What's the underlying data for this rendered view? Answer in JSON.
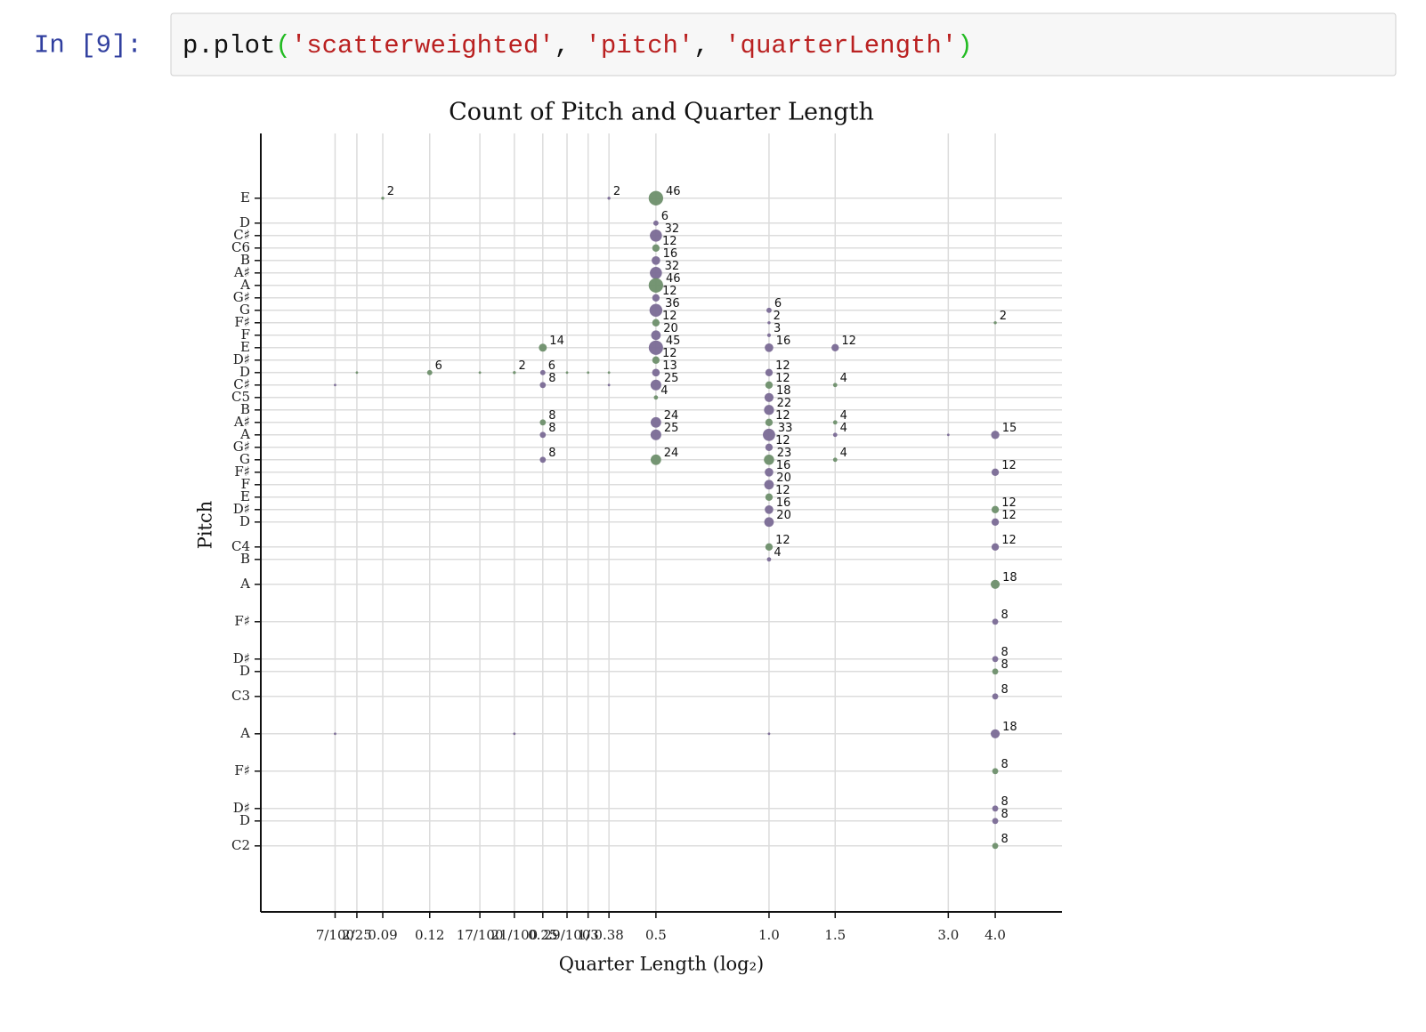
{
  "cell": {
    "prompt": "In [9]:",
    "code": [
      "p.plot",
      "(",
      "'scatterweighted'",
      ", ",
      "'pitch'",
      ", ",
      "'quarterLength'",
      ")"
    ]
  },
  "chart_data": {
    "type": "scatter",
    "title": "Count of Pitch and Quarter Length",
    "x_label": "Quarter Length (log₂)",
    "y_label": "Pitch",
    "xscale": "log2",
    "grid": true,
    "xlim": [
      0.0444,
      6.02
    ],
    "ylim": [
      30.7,
      93.2
    ],
    "xticks": [
      {
        "value": 0.07,
        "label": "7/100"
      },
      {
        "value": 0.08,
        "label": "2/25"
      },
      {
        "value": 0.09375,
        "label": "0.09"
      },
      {
        "value": 0.125,
        "label": "0.12"
      },
      {
        "value": 0.17,
        "label": "17/100"
      },
      {
        "value": 0.21,
        "label": "21/100"
      },
      0.25,
      {
        "value": 0.29,
        "label": "29/100"
      },
      {
        "value": 0.33,
        "label": "1/3"
      },
      {
        "value": 0.375,
        "label": "0.38"
      },
      0.5,
      {
        "value": 1,
        "label": "1.0"
      },
      1.5,
      {
        "value": 3,
        "label": "3.0"
      },
      {
        "value": 4,
        "label": "4.0"
      }
    ],
    "yticks": [
      {
        "value": 88,
        "label": "E"
      },
      {
        "value": 86,
        "label": "D"
      },
      {
        "value": 85,
        "label": "C♯"
      },
      {
        "value": 84,
        "label": "C6"
      },
      {
        "value": 83,
        "label": "B"
      },
      {
        "value": 82,
        "label": "A♯"
      },
      {
        "value": 81,
        "label": "A"
      },
      {
        "value": 80,
        "label": "G♯"
      },
      {
        "value": 79,
        "label": "G"
      },
      {
        "value": 78,
        "label": "F♯"
      },
      {
        "value": 77,
        "label": "F"
      },
      {
        "value": 76,
        "label": "E"
      },
      {
        "value": 75,
        "label": "D♯"
      },
      {
        "value": 74,
        "label": "D"
      },
      {
        "value": 73,
        "label": "C♯"
      },
      {
        "value": 72,
        "label": "C5"
      },
      {
        "value": 71,
        "label": "B"
      },
      {
        "value": 70,
        "label": "A♯"
      },
      {
        "value": 69,
        "label": "A"
      },
      {
        "value": 68,
        "label": "G♯"
      },
      {
        "value": 67,
        "label": "G"
      },
      {
        "value": 66,
        "label": "F♯"
      },
      {
        "value": 65,
        "label": "F"
      },
      {
        "value": 64,
        "label": "E"
      },
      {
        "value": 63,
        "label": "D♯"
      },
      {
        "value": 62,
        "label": "D"
      },
      {
        "value": 60,
        "label": "C4"
      },
      {
        "value": 59,
        "label": "B"
      },
      {
        "value": 57,
        "label": "A"
      },
      {
        "value": 54,
        "label": "F♯"
      },
      {
        "value": 51,
        "label": "D♯"
      },
      {
        "value": 50,
        "label": "D"
      },
      {
        "value": 48,
        "label": "C3"
      },
      {
        "value": 45,
        "label": "A"
      },
      {
        "value": 42,
        "label": "F♯"
      },
      {
        "value": 39,
        "label": "D♯"
      },
      {
        "value": 38,
        "label": "D"
      },
      {
        "value": 36,
        "label": "C2"
      }
    ],
    "x": [
      0.09375,
      0.375,
      0.5,
      0.5,
      0.5,
      0.5,
      0.5,
      0.5,
      0.5,
      0.5,
      0.5,
      0.5,
      0.5,
      0.5,
      0.5,
      0.5,
      0.5,
      0.5,
      0.5,
      0.5,
      0.5,
      0.25,
      0.25,
      0.25,
      0.25,
      0.25,
      0.25,
      0.125,
      0.21,
      0.21,
      0.07,
      0.08,
      0.17,
      0.29,
      0.33,
      0.375,
      0.375,
      0.07,
      1,
      3,
      1,
      1,
      1,
      1,
      1,
      1,
      1,
      1,
      1,
      1,
      1,
      1,
      1,
      1,
      1,
      1,
      1,
      1,
      1,
      1.5,
      1.5,
      1.5,
      1.5,
      1.5,
      4,
      4,
      4,
      4,
      4,
      4,
      4,
      4,
      4,
      4,
      4,
      4,
      4,
      4,
      4,
      4
    ],
    "values": [
      88,
      88,
      88,
      86,
      85,
      84,
      83,
      82,
      81,
      80,
      79,
      78,
      77,
      76,
      75,
      74,
      73,
      72,
      70,
      69,
      67,
      76,
      74,
      73,
      70,
      69,
      67,
      74,
      74,
      45,
      73,
      74,
      74,
      74,
      74,
      74,
      73,
      45,
      45,
      69,
      79,
      78,
      77,
      76,
      74,
      73,
      72,
      71,
      70,
      69,
      68,
      67,
      66,
      65,
      64,
      63,
      62,
      60,
      59,
      76,
      73,
      70,
      69,
      67,
      78,
      69,
      66,
      63,
      62,
      60,
      57,
      54,
      51,
      50,
      48,
      45,
      42,
      39,
      38,
      36
    ],
    "sizes": [
      2,
      2,
      46,
      6,
      32,
      12,
      16,
      32,
      46,
      12,
      36,
      12,
      20,
      45,
      12,
      13,
      25,
      4,
      24,
      25,
      24,
      14,
      6,
      8,
      8,
      8,
      8,
      6,
      2,
      null,
      null,
      null,
      null,
      null,
      null,
      null,
      null,
      null,
      null,
      null,
      6,
      2,
      3,
      16,
      12,
      12,
      18,
      22,
      12,
      33,
      12,
      23,
      16,
      20,
      12,
      16,
      20,
      12,
      4,
      12,
      4,
      4,
      4,
      4,
      2,
      15,
      12,
      12,
      12,
      12,
      18,
      8,
      8,
      8,
      8,
      18,
      8,
      8,
      8,
      8
    ],
    "colors": [
      "#6e8f6c",
      "#7a6a95",
      "#6e8f6c",
      "#7a6a95",
      "#7a6a95",
      "#6e8f6c",
      "#7a6a95",
      "#7a6a95",
      "#6e8f6c",
      "#7a6a95",
      "#7a6a95",
      "#6e8f6c",
      "#7a6a95",
      "#7a6a95",
      "#6e8f6c",
      "#7a6a95",
      "#7a6a95",
      "#6e8f6c",
      "#7a6a95",
      "#7a6a95",
      "#6e8f6c",
      "#6e8f6c",
      "#7a6a95",
      "#7a6a95",
      "#6e8f6c",
      "#7a6a95",
      "#7a6a95",
      "#6e8f6c",
      "#6e8f6c",
      "#7a6a95",
      "#7a6a95",
      "#6e8f6c",
      "#6e8f6c",
      "#6e8f6c",
      "#6e8f6c",
      "#6e8f6c",
      "#7a6a95",
      "#7a6a95",
      "#7a6a95",
      "#7a6a95",
      "#7a6a95",
      "#7a6a95",
      "#7a6a95",
      "#7a6a95",
      "#7a6a95",
      "#6e8f6c",
      "#7a6a95",
      "#7a6a95",
      "#6e8f6c",
      "#7a6a95",
      "#7a6a95",
      "#6e8f6c",
      "#7a6a95",
      "#7a6a95",
      "#6e8f6c",
      "#7a6a95",
      "#7a6a95",
      "#6e8f6c",
      "#7a6a95",
      "#7a6a95",
      "#6e8f6c",
      "#6e8f6c",
      "#7a6a95",
      "#6e8f6c",
      "#6e8f6c",
      "#7a6a95",
      "#7a6a95",
      "#6e8f6c",
      "#7a6a95",
      "#7a6a95",
      "#6e8f6c",
      "#7a6a95",
      "#7a6a95",
      "#6e8f6c",
      "#7a6a95",
      "#7a6a95",
      "#6e8f6c",
      "#7a6a95",
      "#7a6a95",
      "#6e8f6c"
    ]
  }
}
